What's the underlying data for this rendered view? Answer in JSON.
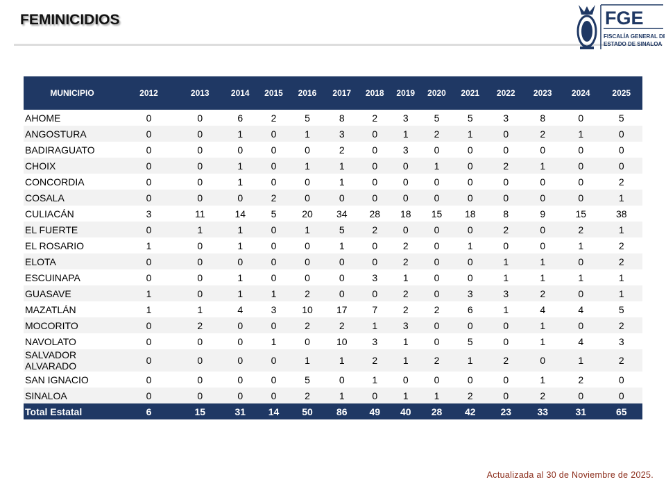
{
  "header": {
    "title": "FEMINICIDIOS",
    "logo_acronym": "FGE",
    "logo_line1": "FISCALÍA GENERAL DEL",
    "logo_line2": "ESTADO DE SINALOA"
  },
  "table": {
    "headers": [
      "MUNICIPIO",
      "2012",
      "2013",
      "2014",
      "2015",
      "2016",
      "2017",
      "2018",
      "2019",
      "2020",
      "2021",
      "2022",
      "2023",
      "2024",
      "2025"
    ],
    "rows": [
      [
        "AHOME",
        0,
        0,
        6,
        2,
        5,
        8,
        2,
        3,
        5,
        5,
        3,
        8,
        0,
        5
      ],
      [
        "ANGOSTURA",
        0,
        0,
        1,
        0,
        1,
        3,
        0,
        1,
        2,
        1,
        0,
        2,
        1,
        0
      ],
      [
        "BADIRAGUATO",
        0,
        0,
        0,
        0,
        0,
        2,
        0,
        3,
        0,
        0,
        0,
        0,
        0,
        0
      ],
      [
        "CHOIX",
        0,
        0,
        1,
        0,
        1,
        1,
        0,
        0,
        1,
        0,
        2,
        1,
        0,
        0
      ],
      [
        "CONCORDIA",
        0,
        0,
        1,
        0,
        0,
        1,
        0,
        0,
        0,
        0,
        0,
        0,
        0,
        2
      ],
      [
        "COSALA",
        0,
        0,
        0,
        2,
        0,
        0,
        0,
        0,
        0,
        0,
        0,
        0,
        0,
        1
      ],
      [
        "CULIACÁN",
        3,
        11,
        14,
        5,
        20,
        34,
        28,
        18,
        15,
        18,
        8,
        9,
        15,
        38
      ],
      [
        "EL FUERTE",
        0,
        1,
        1,
        0,
        1,
        5,
        2,
        0,
        0,
        0,
        2,
        0,
        2,
        1
      ],
      [
        "EL ROSARIO",
        1,
        0,
        1,
        0,
        0,
        1,
        0,
        2,
        0,
        1,
        0,
        0,
        1,
        2
      ],
      [
        "ELOTA",
        0,
        0,
        0,
        0,
        0,
        0,
        0,
        2,
        0,
        0,
        1,
        1,
        0,
        2
      ],
      [
        "ESCUINAPA",
        0,
        0,
        1,
        0,
        0,
        0,
        3,
        1,
        0,
        0,
        1,
        1,
        1,
        1
      ],
      [
        "GUASAVE",
        1,
        0,
        1,
        1,
        2,
        0,
        0,
        2,
        0,
        3,
        3,
        2,
        0,
        1
      ],
      [
        "MAZATLÁN",
        1,
        1,
        4,
        3,
        10,
        17,
        7,
        2,
        2,
        6,
        1,
        4,
        4,
        5
      ],
      [
        "MOCORITO",
        0,
        2,
        0,
        0,
        2,
        2,
        1,
        3,
        0,
        0,
        0,
        1,
        0,
        2
      ],
      [
        "NAVOLATO",
        0,
        0,
        0,
        1,
        0,
        10,
        3,
        1,
        0,
        5,
        0,
        1,
        4,
        3
      ],
      [
        "SALVADOR ALVARADO",
        0,
        0,
        0,
        0,
        1,
        1,
        2,
        1,
        2,
        1,
        2,
        0,
        1,
        2
      ],
      [
        "SAN IGNACIO",
        0,
        0,
        0,
        0,
        5,
        0,
        1,
        0,
        0,
        0,
        0,
        1,
        2,
        0
      ],
      [
        "SINALOA",
        0,
        0,
        0,
        0,
        2,
        1,
        0,
        1,
        1,
        2,
        0,
        2,
        0,
        0
      ]
    ],
    "total": [
      "Total Estatal",
      6,
      15,
      31,
      14,
      50,
      86,
      49,
      40,
      28,
      42,
      23,
      33,
      31,
      65
    ]
  },
  "footer": {
    "note": "Actualizada al 30 de Noviembre de 2025."
  }
}
